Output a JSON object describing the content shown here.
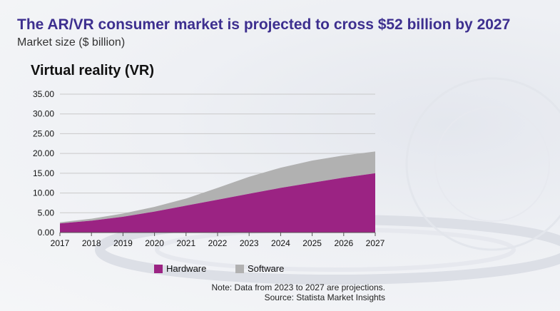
{
  "title": "The AR/VR consumer market is projected to cross $52 billion by 2027",
  "subtitle": "Market size ($ billion)",
  "colors": {
    "title": "#3d2f8f",
    "hardware": "#9b2383",
    "software": "#b1b1b1",
    "grid": "#c9c9c9"
  },
  "chart_data": {
    "type": "area",
    "stacked": true,
    "title": "Virtual reality (VR)",
    "xlabel": "",
    "ylabel": "",
    "x": [
      "2017",
      "2018",
      "2019",
      "2020",
      "2021",
      "2022",
      "2023",
      "2024",
      "2025",
      "2026",
      "2027"
    ],
    "yticks": [
      "0.00",
      "5.00",
      "10.00",
      "15.00",
      "20.00",
      "25.00",
      "30.00",
      "35.00"
    ],
    "ylim": [
      0,
      35
    ],
    "grid": true,
    "legend_position": "bottom",
    "series": [
      {
        "name": "Hardware",
        "values": [
          2.3,
          3.0,
          4.0,
          5.3,
          6.8,
          8.3,
          9.8,
          11.3,
          12.6,
          13.9,
          15.0
        ],
        "color": "#9b2383"
      },
      {
        "name": "Software",
        "values": [
          0.3,
          0.5,
          0.8,
          1.2,
          1.8,
          3.0,
          4.3,
          5.1,
          5.6,
          5.6,
          5.5
        ],
        "color": "#b1b1b1"
      }
    ]
  },
  "note": "Note: Data from 2023 to 2027 are projections.",
  "source": "Source: Statista Market Insights"
}
